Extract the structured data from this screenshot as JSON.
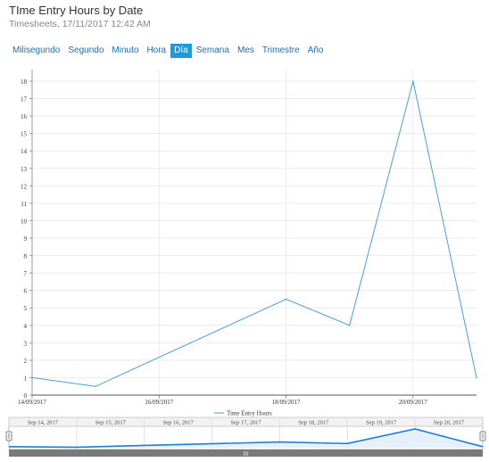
{
  "header": {
    "title": "TIme Entry Hours by Date",
    "subtitle": "Timesheets, 17/11/2017 12:42 AM"
  },
  "tabs": [
    {
      "label": "Milisegundo",
      "active": false
    },
    {
      "label": "Segundo",
      "active": false
    },
    {
      "label": "Minuto",
      "active": false
    },
    {
      "label": "Hora",
      "active": false
    },
    {
      "label": "Día",
      "active": true
    },
    {
      "label": "Semana",
      "active": false
    },
    {
      "label": "Mes",
      "active": false
    },
    {
      "label": "Trimestre",
      "active": false
    },
    {
      "label": "Año",
      "active": false
    }
  ],
  "colors": {
    "line": "#4a9fd8",
    "active_tab": "#1e9ad6",
    "tab_text": "#1e6fb0",
    "navigator_line": "#1e7fd0"
  },
  "chart_data": {
    "type": "line",
    "title": "",
    "xlabel": "",
    "ylabel": "",
    "series": [
      {
        "name": "Time Entry Hours",
        "points": [
          {
            "x": "2017-09-14",
            "y": 1
          },
          {
            "x": "2017-09-15",
            "y": 0.5
          },
          {
            "x": "2017-09-18",
            "y": 5.5
          },
          {
            "x": "2017-09-19",
            "y": 4
          },
          {
            "x": "2017-09-20",
            "y": 18
          },
          {
            "x": "2017-09-21",
            "y": 1
          }
        ]
      }
    ],
    "ylim": [
      0,
      18
    ],
    "yticks": [
      "0",
      "1",
      "2",
      "3",
      "4",
      "5",
      "6",
      "7",
      "8",
      "9",
      "10",
      "11",
      "12",
      "13",
      "14",
      "15",
      "16",
      "17",
      "18"
    ],
    "xticks": [
      {
        "x": "2017-09-14",
        "label": "14/09/2017"
      },
      {
        "x": "2017-09-16",
        "label": "16/09/2017"
      },
      {
        "x": "2017-09-18",
        "label": "18/09/2017"
      },
      {
        "x": "2017-09-20",
        "label": "20/09/2017"
      }
    ],
    "grid": true,
    "legend": "bottom-center",
    "navigator": {
      "labels": [
        "Sep 14, 2017",
        "Sep 15, 2017",
        "Sep 16, 2017",
        "Sep 17, 2017",
        "Sep 18, 2017",
        "Sep 19, 2017",
        "Sep 20, 2017"
      ],
      "handle_label": "III"
    }
  }
}
